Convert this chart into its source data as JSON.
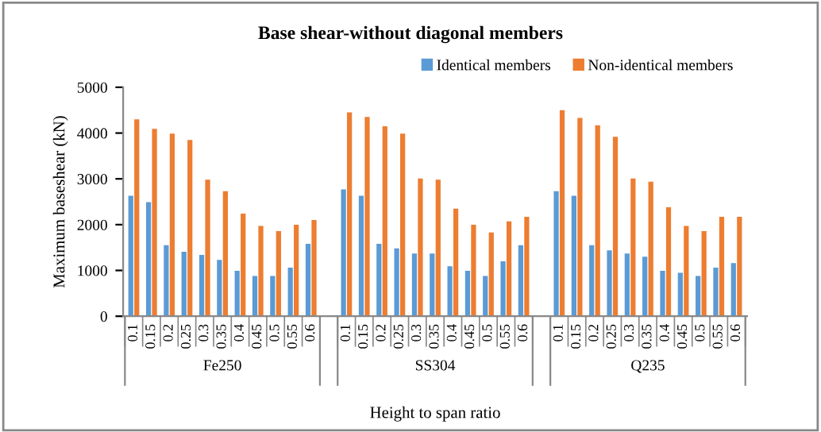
{
  "chart_data": {
    "type": "bar",
    "title": "Base shear-without diagonal members",
    "xlabel": "Height to span ratio",
    "ylabel": "Maximum baseshear (kN)",
    "categories": [
      "0.1",
      "0.15",
      "0.2",
      "0.25",
      "0.3",
      "0.35",
      "0.4",
      "0.45",
      "0.5",
      "0.55",
      "0.6",
      null,
      "0.1",
      "0.15",
      "0.2",
      "0.25",
      "0.3",
      "0.35",
      "0.4",
      "0.45",
      "0.5",
      "0.55",
      "0.6",
      null,
      "0.1",
      "0.15",
      "0.2",
      "0.25",
      "0.3",
      "0.35",
      "0.4",
      "0.45",
      "0.5",
      "0.55",
      "0.6"
    ],
    "annotations": [
      "Fe250",
      "SS304",
      "Q235"
    ],
    "series": [
      {
        "name": "Identical members",
        "color": "#5b9bd5",
        "values": [
          2630,
          2490,
          1550,
          1410,
          1340,
          1230,
          990,
          880,
          880,
          1060,
          1580,
          null,
          2770,
          2630,
          1580,
          1480,
          1370,
          1370,
          1090,
          990,
          880,
          1200,
          1550,
          null,
          2730,
          2630,
          1550,
          1440,
          1370,
          1300,
          990,
          950,
          880,
          1060,
          1160
        ]
      },
      {
        "name": "Non-identical members",
        "color": "#ed7d31",
        "values": [
          4300,
          4090,
          3990,
          3850,
          2980,
          2730,
          2240,
          1970,
          1860,
          2000,
          2100,
          null,
          4450,
          4350,
          4150,
          3990,
          3010,
          2980,
          2350,
          2000,
          1830,
          2070,
          2170,
          null,
          4500,
          4330,
          4170,
          3920,
          3010,
          2940,
          2380,
          1970,
          1860,
          2170,
          2170
        ]
      }
    ],
    "ylim": [
      0,
      5000
    ],
    "yticks": [
      0,
      1000,
      2000,
      3000,
      4000,
      5000
    ],
    "grid": false,
    "legend": "top right"
  }
}
